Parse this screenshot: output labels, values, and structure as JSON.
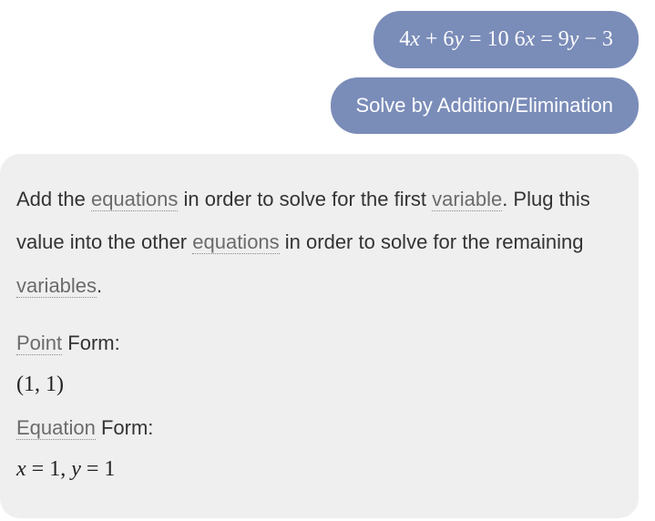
{
  "bubbles": {
    "equation_html": "<span class=\"n\">4</span>x <span class=\"n\">+ 6</span>y <span class=\"n\">= 10 6</span>x <span class=\"n\">= 9</span>y <span class=\"n\">− 3</span>",
    "command": "Solve by Addition/Elimination"
  },
  "answer": {
    "explain_parts": {
      "t1": "Add the ",
      "term1": "equations",
      "t2": " in order to solve for the first ",
      "term2": "variable",
      "t3": ". Plug this value into the other ",
      "term3": "equations",
      "t4": " in order to solve for the remaining ",
      "term4": "variables",
      "t5": "."
    },
    "point_form_term": "Point",
    "point_form_rest": " Form:",
    "point_value_html": "<span class=\"mo\">(1, 1)</span>",
    "equation_form_term": "Equation",
    "equation_form_rest": " Form:",
    "equation_value_html": "<span class=\"mi\">x</span> <span class=\"mo\">= 1,</span> <span class=\"mi\">y</span> <span class=\"mo\">= 1</span>"
  },
  "colors": {
    "bubble_bg": "#7a8cb8",
    "answer_bg": "#efefef",
    "term_color": "#6b6b6b"
  }
}
